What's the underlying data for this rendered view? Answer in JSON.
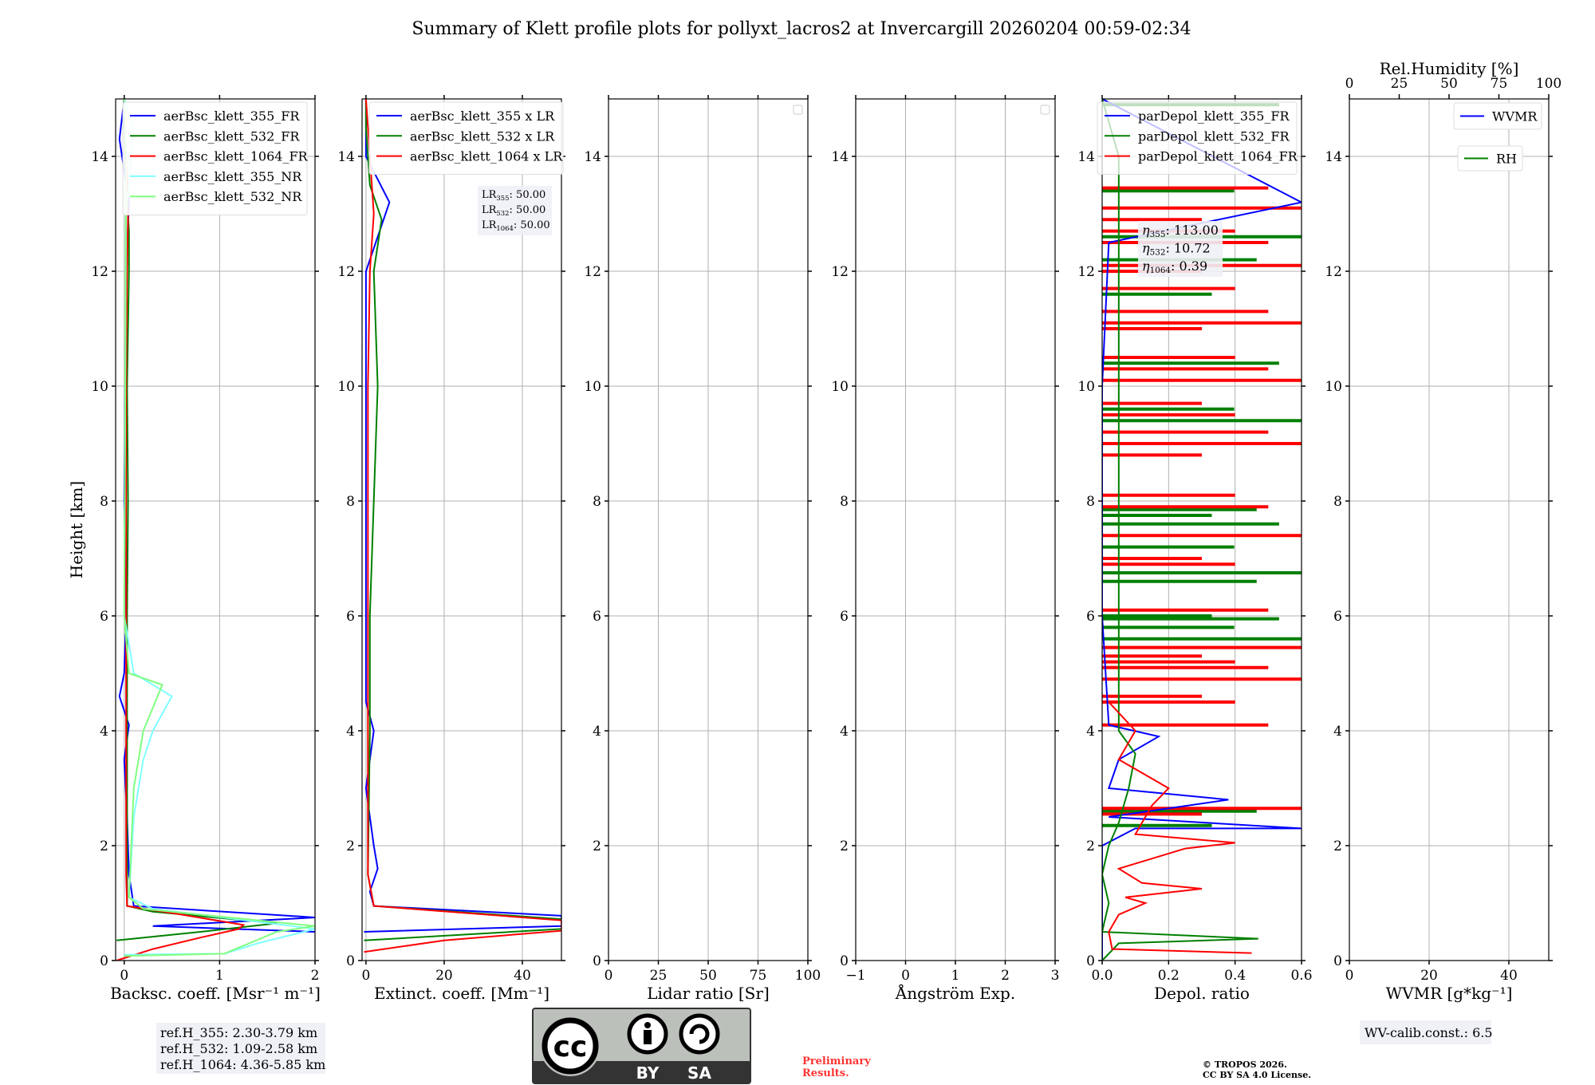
{
  "title": "Summary of Klett profile plots for pollyxt_lacros2 at Invercargill 20260204 00:59-02:34",
  "ylabel": "Height [km]",
  "colors": {
    "c355": "#0000ff",
    "c532": "#008000",
    "c1064": "#ff0000",
    "c355nr": "#80ffff",
    "c532nr": "#80ff80"
  },
  "chart_data": [
    {
      "type": "line",
      "name": "backscatter",
      "xlabel": "Backsc. coeff. [Msr⁻¹ m⁻¹]",
      "xlim": [
        -0.09,
        2
      ],
      "ylim": [
        0,
        15
      ],
      "xticks": [
        0,
        1,
        2
      ],
      "yticks": [
        0,
        2,
        4,
        6,
        8,
        10,
        12,
        14
      ],
      "grid": true,
      "legend": "top-left",
      "series": [
        {
          "name": "aerBsc_klett_355_FR",
          "color": "#0000ff",
          "points": [
            [
              2,
              0.5
            ],
            [
              0.3,
              0.6
            ],
            [
              2,
              0.75
            ],
            [
              0.1,
              0.95
            ],
            [
              0.05,
              1.5
            ],
            [
              0.03,
              2.5
            ],
            [
              0.0,
              3.5
            ],
            [
              0.05,
              4.1
            ],
            [
              -0.05,
              4.6
            ],
            [
              0.0,
              5
            ],
            [
              0.02,
              6
            ],
            [
              0.0,
              8
            ],
            [
              0.01,
              10
            ],
            [
              0.02,
              12
            ],
            [
              0.05,
              13.2
            ],
            [
              -0.05,
              14.3
            ],
            [
              0.0,
              15
            ]
          ]
        },
        {
          "name": "aerBsc_klett_532_FR",
          "color": "#008000",
          "points": [
            [
              -0.08,
              0.35
            ],
            [
              0.8,
              0.5
            ],
            [
              1.6,
              0.65
            ],
            [
              0.3,
              0.85
            ],
            [
              0.03,
              0.95
            ],
            [
              0.03,
              2
            ],
            [
              0.03,
              4
            ],
            [
              0.03,
              6
            ],
            [
              0.04,
              8
            ],
            [
              0.03,
              10
            ],
            [
              0.05,
              12
            ],
            [
              0.05,
              12.7
            ],
            [
              0.02,
              13.5
            ],
            [
              0.0,
              14.5
            ],
            [
              0.0,
              15
            ]
          ]
        },
        {
          "name": "aerBsc_klett_1064_FR",
          "color": "#ff0000",
          "points": [
            [
              -0.08,
              0
            ],
            [
              0.3,
              0.2
            ],
            [
              0.8,
              0.4
            ],
            [
              1.2,
              0.55
            ],
            [
              1.25,
              0.62
            ],
            [
              0.6,
              0.8
            ],
            [
              0.03,
              0.95
            ],
            [
              0.02,
              1.5
            ],
            [
              0.02,
              3
            ],
            [
              0.02,
              5
            ],
            [
              0.02,
              8
            ],
            [
              0.02,
              10
            ],
            [
              0.03,
              12
            ],
            [
              0.04,
              13
            ],
            [
              0.0,
              15
            ]
          ]
        },
        {
          "name": "aerBsc_klett_355_NR",
          "color": "#80ffff",
          "points": [
            [
              0.0,
              0.1
            ],
            [
              1.05,
              0.12
            ],
            [
              1.4,
              0.3
            ],
            [
              2,
              0.55
            ],
            [
              0.3,
              0.9
            ],
            [
              0.05,
              1.1
            ],
            [
              0.1,
              2.5
            ],
            [
              0.2,
              3.5
            ],
            [
              0.3,
              4
            ],
            [
              0.5,
              4.6
            ],
            [
              0.1,
              5
            ],
            [
              0.0,
              6
            ],
            [
              0.02,
              13
            ],
            [
              0.1,
              14.5
            ],
            [
              0.0,
              15
            ]
          ]
        },
        {
          "name": "aerBsc_klett_532_NR",
          "color": "#80ff80",
          "points": [
            [
              0.0,
              0.08
            ],
            [
              1.05,
              0.12
            ],
            [
              1.6,
              0.5
            ],
            [
              2,
              0.6
            ],
            [
              0.2,
              0.9
            ],
            [
              0.05,
              1.1
            ],
            [
              0.1,
              3
            ],
            [
              0.2,
              4
            ],
            [
              0.4,
              4.8
            ],
            [
              0.05,
              5
            ],
            [
              0.0,
              6
            ],
            [
              0.02,
              14
            ],
            [
              0.0,
              15
            ]
          ]
        }
      ]
    },
    {
      "type": "line",
      "name": "extinction",
      "xlabel": "Extinct. coeff. [Mm⁻¹]",
      "xlim": [
        -1,
        50
      ],
      "ylim": [
        0,
        15
      ],
      "xticks": [
        0,
        20,
        40
      ],
      "yticks": [
        0,
        2,
        4,
        6,
        8,
        10,
        12,
        14
      ],
      "grid": true,
      "legend": "top-left",
      "series": [
        {
          "name": "aerBsc_klett_355 x LR",
          "color": "#0000ff",
          "points": [
            [
              -0.5,
              0.5
            ],
            [
              50,
              0.6
            ],
            [
              50,
              0.78
            ],
            [
              2,
              0.95
            ],
            [
              1,
              1.2
            ],
            [
              3,
              1.6
            ],
            [
              2,
              2
            ],
            [
              1,
              2.5
            ],
            [
              0,
              3
            ],
            [
              2,
              4
            ],
            [
              0,
              4.5
            ],
            [
              0,
              6
            ],
            [
              0,
              8
            ],
            [
              0,
              10
            ],
            [
              0,
              12
            ],
            [
              6,
              13.2
            ],
            [
              0,
              14
            ],
            [
              0,
              15
            ]
          ]
        },
        {
          "name": "aerBsc_klett_532 x LR",
          "color": "#008000",
          "points": [
            [
              -0.5,
              0.35
            ],
            [
              50,
              0.55
            ],
            [
              50,
              0.72
            ],
            [
              2,
              0.95
            ],
            [
              0.5,
              1.5
            ],
            [
              1,
              4
            ],
            [
              1,
              6
            ],
            [
              2,
              8
            ],
            [
              3,
              10
            ],
            [
              2,
              12
            ],
            [
              4,
              12.9
            ],
            [
              1,
              13.5
            ],
            [
              0,
              14.5
            ],
            [
              0,
              15
            ]
          ]
        },
        {
          "name": "aerBsc_klett_1064 x LR",
          "color": "#ff0000",
          "points": [
            [
              -0.5,
              0.15
            ],
            [
              20,
              0.35
            ],
            [
              50,
              0.52
            ],
            [
              50,
              0.7
            ],
            [
              2,
              0.95
            ],
            [
              0.5,
              1.5
            ],
            [
              0.5,
              4
            ],
            [
              0.5,
              6
            ],
            [
              0.5,
              8
            ],
            [
              0.5,
              10
            ],
            [
              1,
              12
            ],
            [
              2,
              13
            ],
            [
              0,
              15
            ]
          ]
        }
      ],
      "annotation": [
        "50.00",
        "50.00",
        "50.00"
      ]
    },
    {
      "type": "line",
      "name": "lidar-ratio",
      "xlabel": "Lidar ratio [Sr]",
      "xlim": [
        0,
        100
      ],
      "ylim": [
        0,
        15
      ],
      "xticks": [
        0,
        25,
        50,
        75,
        100
      ],
      "yticks": [
        0,
        2,
        4,
        6,
        8,
        10,
        12,
        14
      ],
      "grid": true,
      "series": []
    },
    {
      "type": "line",
      "name": "angstrom",
      "xlabel": "Ångström Exp.",
      "xlim": [
        -1,
        3
      ],
      "ylim": [
        0,
        15
      ],
      "xticks": [
        -1,
        0,
        1,
        2,
        3
      ],
      "yticks": [
        0,
        2,
        4,
        6,
        8,
        10,
        12,
        14
      ],
      "grid": true,
      "series": []
    },
    {
      "type": "line",
      "name": "depol",
      "xlabel": "Depol. ratio",
      "xlim": [
        0,
        0.6
      ],
      "ylim": [
        0,
        15
      ],
      "xticks": [
        0.0,
        0.2,
        0.4,
        0.6
      ],
      "yticks": [
        0,
        2,
        4,
        6,
        8,
        10,
        12,
        14
      ],
      "grid": true,
      "legend": "top-left",
      "series": [
        {
          "name": "parDepol_klett_355_FR",
          "color": "#0000ff",
          "points": [
            [
              0,
              0
            ],
            [
              0,
              2
            ],
            [
              0.1,
              2.3
            ],
            [
              0.6,
              2.3
            ],
            [
              0.02,
              2.5
            ],
            [
              0.38,
              2.8
            ],
            [
              0.02,
              3
            ],
            [
              0.05,
              3.5
            ],
            [
              0.17,
              3.9
            ],
            [
              0.02,
              4.1
            ],
            [
              0.0,
              6
            ],
            [
              0.0,
              8
            ],
            [
              0.0,
              10
            ],
            [
              0.02,
              12.5
            ],
            [
              0.6,
              13.2
            ],
            [
              0.0,
              15
            ]
          ]
        },
        {
          "name": "parDepol_klett_532_FR",
          "color": "#008000",
          "points": [
            [
              0,
              0
            ],
            [
              0.05,
              0.3
            ],
            [
              0.47,
              0.38
            ],
            [
              0.0,
              0.5
            ],
            [
              0.02,
              1
            ],
            [
              0.0,
              1.5
            ],
            [
              0.02,
              2
            ],
            [
              0.05,
              2.4
            ],
            [
              0.08,
              3
            ],
            [
              0.1,
              3.6
            ],
            [
              0.05,
              4
            ],
            [
              0.05,
              6
            ],
            [
              0.05,
              8
            ],
            [
              0.05,
              10
            ],
            [
              0.05,
              12
            ],
            [
              0.05,
              14
            ],
            [
              0.0,
              15
            ]
          ]
        },
        {
          "name": "parDepol_klett_1064_FR",
          "color": "#ff0000",
          "points": [
            [
              0.45,
              0.13
            ],
            [
              0.03,
              0.2
            ],
            [
              0.02,
              0.5
            ],
            [
              0.05,
              0.8
            ],
            [
              0.13,
              1.0
            ],
            [
              0.07,
              1.1
            ],
            [
              0.3,
              1.25
            ],
            [
              0.12,
              1.35
            ],
            [
              0.05,
              1.6
            ],
            [
              0.25,
              1.95
            ],
            [
              0.4,
              2.05
            ],
            [
              0.1,
              2.2
            ],
            [
              0.15,
              2.7
            ],
            [
              0.2,
              3
            ],
            [
              0.05,
              3.5
            ],
            [
              0.1,
              4.0
            ],
            [
              0.02,
              4.5
            ]
          ]
        }
      ],
      "spikes_532": [
        2.35,
        2.6,
        5.6,
        5.8,
        5.95,
        6.0,
        6.6,
        6.75,
        7.2,
        7.6,
        7.75,
        7.85,
        9.4,
        9.6,
        10.4,
        11.6,
        12.2,
        12.6,
        13.4,
        14.9
      ],
      "spikes_1064": [
        2.55,
        2.65,
        4.1,
        4.5,
        4.6,
        4.9,
        5.1,
        5.2,
        5.3,
        5.45,
        6.1,
        6.9,
        7.0,
        7.4,
        7.9,
        8.1,
        8.8,
        9.0,
        9.2,
        9.5,
        9.7,
        10.1,
        10.3,
        10.5,
        11.0,
        11.1,
        11.3,
        11.7,
        12.0,
        12.1,
        12.5,
        12.7,
        12.9,
        13.1,
        13.45
      ],
      "annotation": [
        "113.00",
        "10.72",
        "0.39"
      ]
    },
    {
      "type": "line",
      "name": "wvmr-rh",
      "xlabel": "WVMR [g*kg⁻¹]",
      "xlim": [
        0,
        50
      ],
      "ylim": [
        0,
        15
      ],
      "xticks": [
        0,
        20,
        40
      ],
      "yticks": [
        0,
        2,
        4,
        6,
        8,
        10,
        12,
        14
      ],
      "top_xlabel": "Rel.Humidity [%]",
      "top_xlim": [
        0,
        100
      ],
      "top_xticks": [
        0,
        25,
        50,
        75,
        100
      ],
      "grid": true,
      "series": [
        {
          "name": "WVMR",
          "color": "#0000ff",
          "points": []
        },
        {
          "name": "RH",
          "color": "#008000",
          "points": []
        }
      ]
    }
  ],
  "ref_heights": [
    "ref.H_355: 2.30-3.79 km",
    "ref.H_532: 1.09-2.58 km",
    "ref.H_1064: 4.36-5.85 km"
  ],
  "lr_labels": [
    "LR",
    "LR",
    "LR"
  ],
  "lr_subs": [
    "355",
    "532",
    "1064"
  ],
  "eta_subs": [
    "355",
    "532",
    "1064"
  ],
  "wv_calib": "WV-calib.const.: 6.5",
  "preliminary": [
    "Preliminary",
    "Results."
  ],
  "copyright": [
    "© TROPOS 2026.",
    "CC BY SA 4.0 License."
  ],
  "cc_logo": {
    "text": "cc",
    "by": "BY",
    "sa": "SA"
  }
}
